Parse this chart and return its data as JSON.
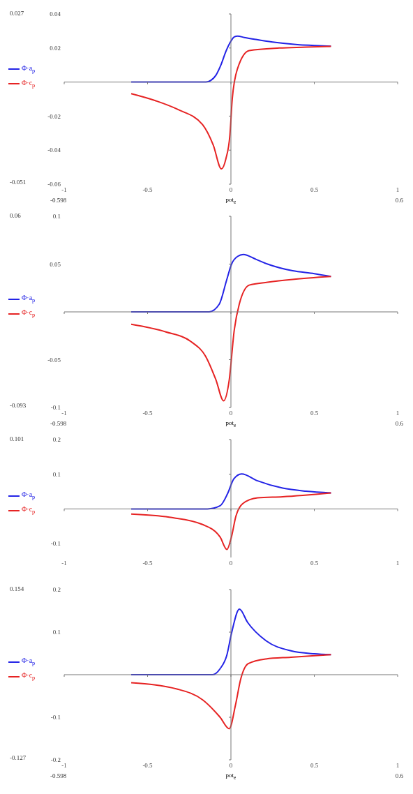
{
  "chart_data": [
    {
      "type": "line",
      "xlabel": "pot$_{e}$",
      "xlim": [
        -1,
        1
      ],
      "xticks": [
        -1,
        -0.5,
        0,
        0.5,
        1
      ],
      "ylim": [
        -0.06,
        0.04
      ],
      "yticks": [
        -0.06,
        -0.04,
        -0.02,
        0.02,
        0.04
      ],
      "legend": "left",
      "marker": "none",
      "line_style": "solid",
      "annotations": [
        "0.027",
        "-0.051",
        "-0.598",
        "0.6"
      ],
      "series": [
        {
          "name": "Φ·a$_{p}$",
          "color": "#2323e6",
          "x": [
            -0.598,
            -0.3,
            -0.15,
            -0.12,
            -0.09,
            -0.06,
            -0.03,
            0,
            0.02,
            0.04,
            0.08,
            0.15,
            0.25,
            0.4,
            0.5,
            0.6
          ],
          "values": [
            0,
            0,
            0,
            0.001,
            0.004,
            0.01,
            0.018,
            0.024,
            0.0265,
            0.027,
            0.0262,
            0.025,
            0.0235,
            0.022,
            0.0215,
            0.021
          ]
        },
        {
          "name": "Φ·c$_{p}$",
          "color": "#e62323",
          "x": [
            -0.598,
            -0.45,
            -0.32,
            -0.17,
            -0.106,
            -0.057,
            -0.03,
            -0.006,
            0.008,
            0.04,
            0.11,
            0.29,
            0.45,
            0.6
          ],
          "values": [
            -0.0068,
            -0.011,
            -0.016,
            -0.025,
            -0.037,
            -0.051,
            -0.045,
            -0.031,
            -0.01,
            0.008,
            0.0185,
            0.02,
            0.0205,
            0.021
          ]
        }
      ]
    },
    {
      "type": "line",
      "xlabel": "pot$_{e}$",
      "xlim": [
        -1,
        1
      ],
      "xticks": [
        -1,
        -0.5,
        0,
        0.5,
        1
      ],
      "ylim": [
        -0.1,
        0.1
      ],
      "yticks": [
        -0.1,
        -0.05,
        0.05,
        0.1
      ],
      "legend": "left",
      "marker": "none",
      "line_style": "solid",
      "annotations": [
        "0.06",
        "-0.093",
        "-0.598",
        "0.6"
      ],
      "series": [
        {
          "name": "Φ·a$_{p}$",
          "color": "#2323e6",
          "x": [
            -0.598,
            -0.3,
            -0.13,
            -0.07,
            -0.026,
            0.004,
            0.04,
            0.074,
            0.15,
            0.22,
            0.37,
            0.5,
            0.6
          ],
          "values": [
            0,
            0,
            0,
            0.008,
            0.033,
            0.05,
            0.058,
            0.06,
            0.055,
            0.05,
            0.043,
            0.04,
            0.037
          ]
        },
        {
          "name": "Φ·c$_{p}$",
          "color": "#e62323",
          "x": [
            -0.598,
            -0.39,
            -0.24,
            -0.15,
            -0.09,
            -0.044,
            -0.01,
            0.02,
            0.05,
            0.11,
            0.22,
            0.37,
            0.6
          ],
          "values": [
            -0.013,
            -0.021,
            -0.031,
            -0.047,
            -0.071,
            -0.093,
            -0.071,
            -0.019,
            0.008,
            0.028,
            0.031,
            0.034,
            0.037
          ]
        }
      ]
    },
    {
      "type": "line",
      "xlim": [
        -1,
        1
      ],
      "xticks": [
        -1,
        -0.5,
        0,
        0.5,
        1
      ],
      "ylim": [
        -0.14,
        0.2
      ],
      "yticks": [
        -0.1,
        0.1,
        0.2
      ],
      "legend": "left",
      "marker": "none",
      "line_style": "solid",
      "annotations": [
        "0.101"
      ],
      "series": [
        {
          "name": "Φ·a$_{p}$",
          "color": "#2323e6",
          "x": [
            -0.598,
            -0.3,
            -0.14,
            -0.065,
            -0.02,
            0.018,
            0.064,
            0.16,
            0.31,
            0.45,
            0.6
          ],
          "values": [
            0,
            0,
            0,
            0.009,
            0.044,
            0.087,
            0.101,
            0.081,
            0.06,
            0.051,
            0.046
          ]
        },
        {
          "name": "Φ·c$_{p}$",
          "color": "#e62323",
          "x": [
            -0.598,
            -0.37,
            -0.17,
            -0.065,
            -0.024,
            0.003,
            0.03,
            0.07,
            0.16,
            0.31,
            0.6
          ],
          "values": [
            -0.015,
            -0.024,
            -0.045,
            -0.081,
            -0.117,
            -0.081,
            -0.021,
            0.015,
            0.032,
            0.035,
            0.046
          ]
        }
      ]
    },
    {
      "type": "line",
      "xlabel": "pot$_{e}$",
      "xlim": [
        -1,
        1
      ],
      "xticks": [
        -1,
        -0.5,
        0,
        0.5,
        1
      ],
      "ylim": [
        -0.2,
        0.2
      ],
      "yticks": [
        -0.2,
        -0.1,
        0.1,
        0.2
      ],
      "legend": "left",
      "marker": "none",
      "line_style": "solid",
      "annotations": [
        "0.154",
        "-0.127",
        "-0.598",
        "0.6"
      ],
      "series": [
        {
          "name": "Φ·a$_{p}$",
          "color": "#2323e6",
          "x": [
            -0.598,
            -0.3,
            -0.11,
            -0.065,
            -0.025,
            0.004,
            0.051,
            0.1,
            0.21,
            0.36,
            0.5,
            0.6
          ],
          "values": [
            0,
            0,
            0,
            0.014,
            0.045,
            0.098,
            0.154,
            0.123,
            0.08,
            0.056,
            0.049,
            0.047
          ]
        },
        {
          "name": "Φ·c$_{p}$",
          "color": "#e62323",
          "x": [
            -0.598,
            -0.32,
            -0.17,
            -0.065,
            -0.01,
            0.028,
            0.059,
            0.104,
            0.21,
            0.36,
            0.6
          ],
          "values": [
            -0.019,
            -0.034,
            -0.059,
            -0.1,
            -0.127,
            -0.07,
            -0.01,
            0.026,
            0.037,
            0.041,
            0.047
          ]
        }
      ]
    }
  ]
}
